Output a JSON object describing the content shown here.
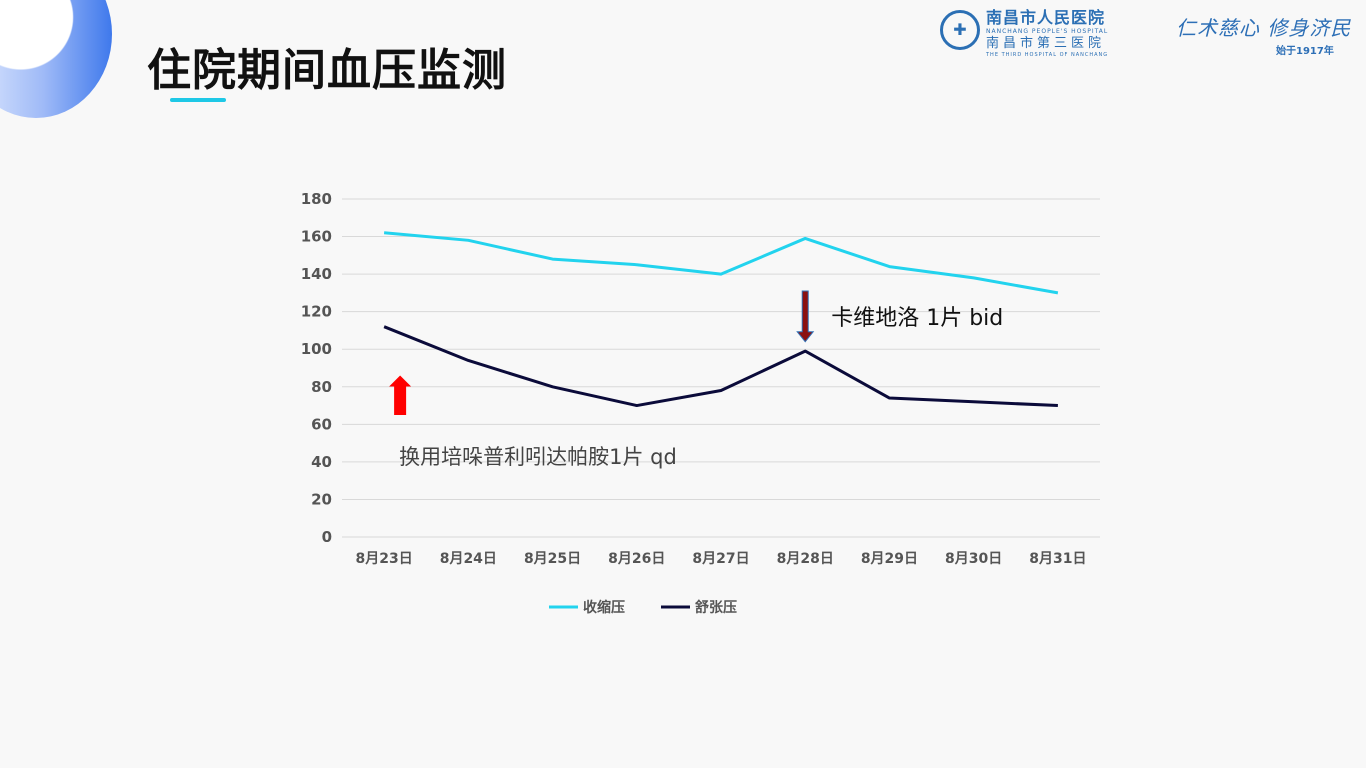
{
  "header": {
    "title": "住院期间血压监测",
    "hospital_name_cn": "南昌市人民医院",
    "hospital_name_en": "NANCHANG PEOPLE'S HOSPITAL",
    "hospital_alt_cn": "南昌市第三医院",
    "hospital_alt_en": "THE THIRD HOSPITAL OF NANCHANG",
    "slogan": "仁术慈心 修身济民",
    "since": "始于1917年"
  },
  "colors": {
    "accent": "#1ec8e6",
    "systolic": "#22d3ee",
    "diastolic": "#0b0b3a",
    "brand": "#2b6fb4",
    "arrow_up": "#ff0000",
    "arrow_down": "#8b1010"
  },
  "chart_data": {
    "type": "line",
    "categories": [
      "8月23日",
      "8月24日",
      "8月25日",
      "8月26日",
      "8月27日",
      "8月28日",
      "8月29日",
      "8月30日",
      "8月31日"
    ],
    "series": [
      {
        "name": "收缩压",
        "values": [
          162,
          158,
          148,
          145,
          140,
          159,
          144,
          138,
          130
        ]
      },
      {
        "name": "舒张压",
        "values": [
          112,
          94,
          80,
          70,
          78,
          99,
          74,
          72,
          70
        ]
      }
    ],
    "ylim": [
      0,
      180
    ],
    "yticks": [
      "0",
      "20",
      "40",
      "60",
      "80",
      "100",
      "120",
      "140",
      "160",
      "180"
    ],
    "grid": true,
    "legend_position": "bottom",
    "annotations": [
      {
        "text": "卡维地洛 1片 bid",
        "category": "8月28日",
        "arrow": "down"
      },
      {
        "text": "换用培哚普利吲达帕胺1片 qd",
        "category": "8月23日",
        "arrow": "up"
      }
    ]
  }
}
